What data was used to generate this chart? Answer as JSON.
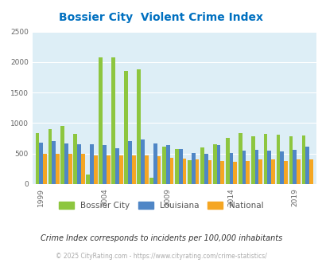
{
  "title": "Bossier City  Violent Crime Index",
  "subtitle": "Crime Index corresponds to incidents per 100,000 inhabitants",
  "footer": "© 2025 CityRating.com - https://www.cityrating.com/crime-statistics/",
  "years": [
    1999,
    2000,
    2001,
    2002,
    2003,
    2004,
    2005,
    2006,
    2007,
    2008,
    2009,
    2010,
    2011,
    2012,
    2013,
    2014,
    2015,
    2016,
    2017,
    2018,
    2019,
    2020
  ],
  "bossier_city": [
    840,
    900,
    950,
    820,
    160,
    2080,
    2080,
    1850,
    1880,
    100,
    620,
    580,
    390,
    600,
    650,
    760,
    830,
    790,
    820,
    810,
    790,
    800
  ],
  "louisiana": [
    680,
    700,
    670,
    650,
    650,
    640,
    590,
    700,
    730,
    660,
    640,
    570,
    510,
    500,
    640,
    510,
    550,
    560,
    550,
    530,
    560,
    610
  ],
  "national": [
    500,
    500,
    500,
    500,
    470,
    470,
    470,
    470,
    470,
    460,
    430,
    420,
    400,
    390,
    380,
    370,
    380,
    400,
    400,
    380,
    400,
    410
  ],
  "bossier_color": "#8dc63f",
  "louisiana_color": "#4f86c6",
  "national_color": "#f5a623",
  "bg_color": "#ddeef6",
  "ylim": [
    0,
    2500
  ],
  "yticks": [
    0,
    500,
    1000,
    1500,
    2000,
    2500
  ],
  "title_color": "#0070c0",
  "legend_label_color": "#555555",
  "subtitle_color": "#333333",
  "footer_color": "#aaaaaa",
  "xtick_years": [
    1999,
    2004,
    2009,
    2014,
    2019
  ]
}
